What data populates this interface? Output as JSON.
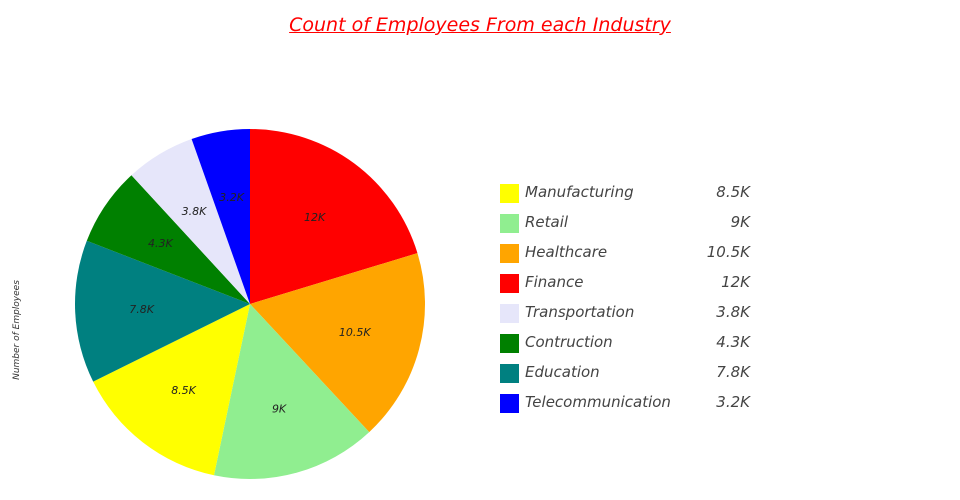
{
  "chart_data": {
    "type": "pie",
    "title": "Count of Employees From each Industry",
    "ylabel": "Number of Employees",
    "legend_position": "right",
    "slices": [
      {
        "label": "Finance",
        "value": 12000,
        "display": "12K",
        "color": "#ff0000"
      },
      {
        "label": "Healthcare",
        "value": 10500,
        "display": "10.5K",
        "color": "#ffa500"
      },
      {
        "label": "Retail",
        "value": 9000,
        "display": "9K",
        "color": "#90ee90"
      },
      {
        "label": "Manufacturing",
        "value": 8500,
        "display": "8.5K",
        "color": "#ffff00"
      },
      {
        "label": "Education",
        "value": 7800,
        "display": "7.8K",
        "color": "#008080"
      },
      {
        "label": "Contruction",
        "value": 4300,
        "display": "4.3K",
        "color": "#008000"
      },
      {
        "label": "Transportation",
        "value": 3800,
        "display": "3.8K",
        "color": "#e6e6fa"
      },
      {
        "label": "Telecommunication",
        "value": 3200,
        "display": "3.2K",
        "color": "#0000ff"
      }
    ],
    "legend": [
      {
        "label": "Manufacturing",
        "display": "8.5K",
        "color": "#ffff00"
      },
      {
        "label": "Retail",
        "display": "9K",
        "color": "#90ee90"
      },
      {
        "label": "Healthcare",
        "display": "10.5K",
        "color": "#ffa500"
      },
      {
        "label": "Finance",
        "display": "12K",
        "color": "#ff0000"
      },
      {
        "label": "Transportation",
        "display": "3.8K",
        "color": "#e6e6fa"
      },
      {
        "label": "Contruction",
        "display": "4.3K",
        "color": "#008000"
      },
      {
        "label": "Education",
        "display": "7.8K",
        "color": "#008080"
      },
      {
        "label": "Telecommunication",
        "display": "3.2K",
        "color": "#0000ff"
      }
    ]
  }
}
